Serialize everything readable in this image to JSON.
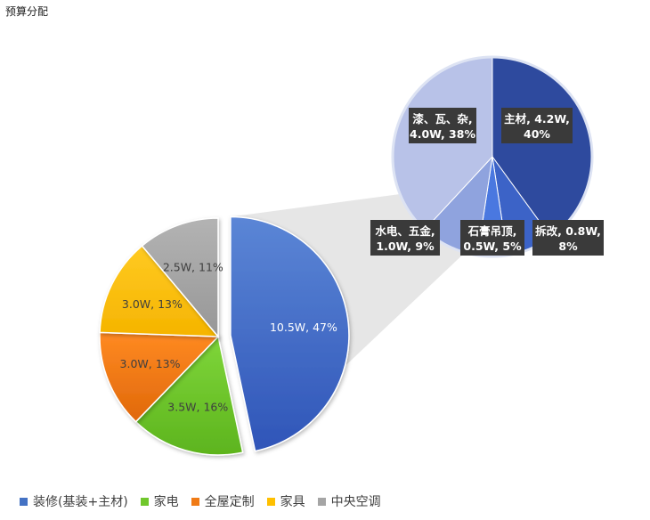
{
  "title": "预算分配",
  "chart_data": {
    "type": "pie",
    "subtype": "pie-of-pie",
    "title": "预算分配",
    "main_pie": {
      "categories": [
        "装修(基装+主材)",
        "家电",
        "全屋定制",
        "家具",
        "中央空调"
      ],
      "labels": [
        "10.5W, 47%",
        "3.5W, 16%",
        "3.0W, 13%",
        "3.0W, 13%",
        "2.5W, 11%"
      ],
      "values": [
        10.5,
        3.5,
        3.0,
        3.0,
        2.5
      ],
      "percents": [
        47,
        16,
        13,
        13,
        11
      ],
      "colors": [
        "#4472c4",
        "#70c72c",
        "#f07b16",
        "#ffc000",
        "#a5a5a5"
      ],
      "exploded": "装修(基装+主材)"
    },
    "sub_pie": {
      "parent": "装修(基装+主材)",
      "categories": [
        "主材",
        "拆改",
        "石膏吊顶",
        "水电、五金",
        "漆、瓦、杂"
      ],
      "labels": [
        [
          "主材, 4.2W,",
          "40%"
        ],
        [
          "拆改, 0.8W,",
          "8%"
        ],
        [
          "石膏吊顶,",
          "0.5W, 5%"
        ],
        [
          "水电、五金,",
          "1.0W, 9%"
        ],
        [
          "漆、瓦、杂,",
          "4.0W, 38%"
        ]
      ],
      "values": [
        4.2,
        0.8,
        0.5,
        1.0,
        4.0
      ],
      "percents": [
        40,
        8,
        5,
        9,
        38
      ],
      "colors": [
        "#2e4a9e",
        "#3c63c7",
        "#4a78e0",
        "#8fa3de",
        "#b8c2e8"
      ]
    },
    "legend": {
      "position": "bottom",
      "items": [
        {
          "label": "装修(基装+主材)",
          "color": "#4472c4"
        },
        {
          "label": "家电",
          "color": "#70c72c"
        },
        {
          "label": "全屋定制",
          "color": "#f07b16"
        },
        {
          "label": "家具",
          "color": "#ffc000"
        },
        {
          "label": "中央空调",
          "color": "#a5a5a5"
        }
      ]
    }
  }
}
